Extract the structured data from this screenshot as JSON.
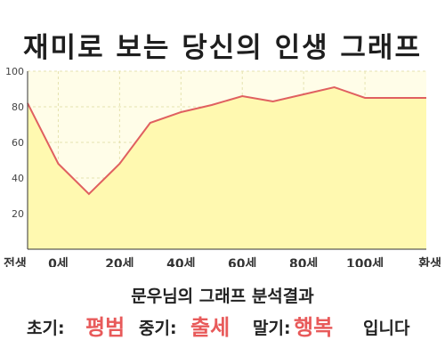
{
  "title": "재미로 보는 당신의 인생 그래프",
  "chart_data": {
    "type": "area",
    "x": [
      0,
      10,
      20,
      30,
      40,
      50,
      60,
      70,
      80,
      90,
      100,
      110
    ],
    "values": [
      82,
      48,
      31,
      48,
      71,
      77,
      81,
      86,
      83,
      87,
      91,
      85
    ],
    "xticks": [
      {
        "x": 0,
        "label": "전생"
      },
      {
        "x": 10,
        "label": "0세"
      },
      {
        "x": 30,
        "label": "20세"
      },
      {
        "x": 50,
        "label": "40세"
      },
      {
        "x": 70,
        "label": "60세"
      },
      {
        "x": 90,
        "label": "80세"
      },
      {
        "x": 110,
        "label": "100세"
      },
      {
        "x": 130,
        "label": "환생"
      }
    ],
    "yticks": [
      20,
      40,
      60,
      80,
      100
    ],
    "xlim": [
      0,
      130
    ],
    "ylim": [
      0,
      100
    ],
    "grid": true,
    "colors": {
      "line": "#e06060",
      "fill": "#fff9b0",
      "plot_bg": "#fffde8",
      "grid": "#e6e2b0"
    }
  },
  "result": {
    "title": "문우님의 그래프 분석결과",
    "early_label": "초기:",
    "early_value": "평범",
    "middle_label": "중기:",
    "middle_value": "출세",
    "late_label": "말기:",
    "late_value": "행복",
    "ending": "입니다",
    "value_color": "#e85a5a"
  }
}
